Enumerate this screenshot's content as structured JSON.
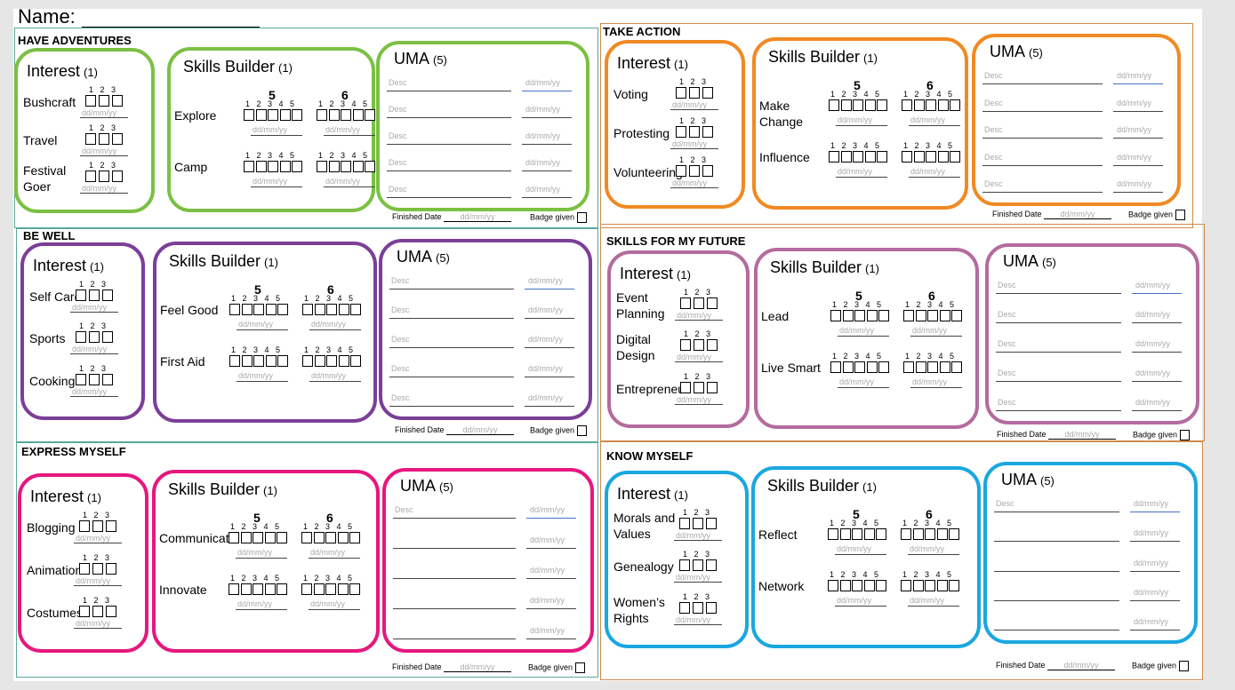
{
  "name_label": "Name:",
  "common": {
    "interest_title": "Interest",
    "interest_count": "(1)",
    "skills_title": "Skills Builder",
    "skills_count": "(1)",
    "uma_title": "UMA",
    "uma_count": "(5)",
    "nums3": "1   2   3",
    "nums5": "1   2   3   4   5",
    "level5": "5",
    "level6": "6",
    "date_placeholder": "dd/mm/yy",
    "desc_placeholder": "Desc",
    "finished_label": "Finished Date",
    "badge_label": "Badge given"
  },
  "sections": [
    {
      "title": "HAVE ADVENTURES",
      "color": "#7bc043",
      "interests": [
        "Bushcraft",
        "Travel",
        "Festival Goer"
      ],
      "skills": [
        "Explore",
        "Camp"
      ]
    },
    {
      "title": "TAKE ACTION",
      "color": "#f08a24",
      "interests": [
        "Voting",
        "Protesting",
        "Volunteering"
      ],
      "skills": [
        "Make Change",
        "Influence"
      ]
    },
    {
      "title": "BE WELL",
      "color": "#7b3f98",
      "interests": [
        "Self Care",
        "Sports",
        "Cooking"
      ],
      "skills": [
        "Feel Good",
        "First Aid"
      ]
    },
    {
      "title": "SKILLS FOR MY FUTURE",
      "color": "#b46b9e",
      "interests": [
        "Event Planning",
        "Digital Design",
        "Entrepreneur"
      ],
      "skills": [
        "Lead",
        "Live Smart"
      ]
    },
    {
      "title": "EXPRESS MYSELF",
      "color": "#e6177e",
      "interests": [
        "Blogging",
        "Animation",
        "Costumes"
      ],
      "skills": [
        "Communicate",
        "Innovate"
      ]
    },
    {
      "title": "KNOW MYSELF",
      "color": "#1aa7e0",
      "interests": [
        "Morals and Values",
        "Genealogy",
        "Women’s Rights"
      ],
      "skills": [
        "Reflect",
        "Network"
      ]
    }
  ]
}
